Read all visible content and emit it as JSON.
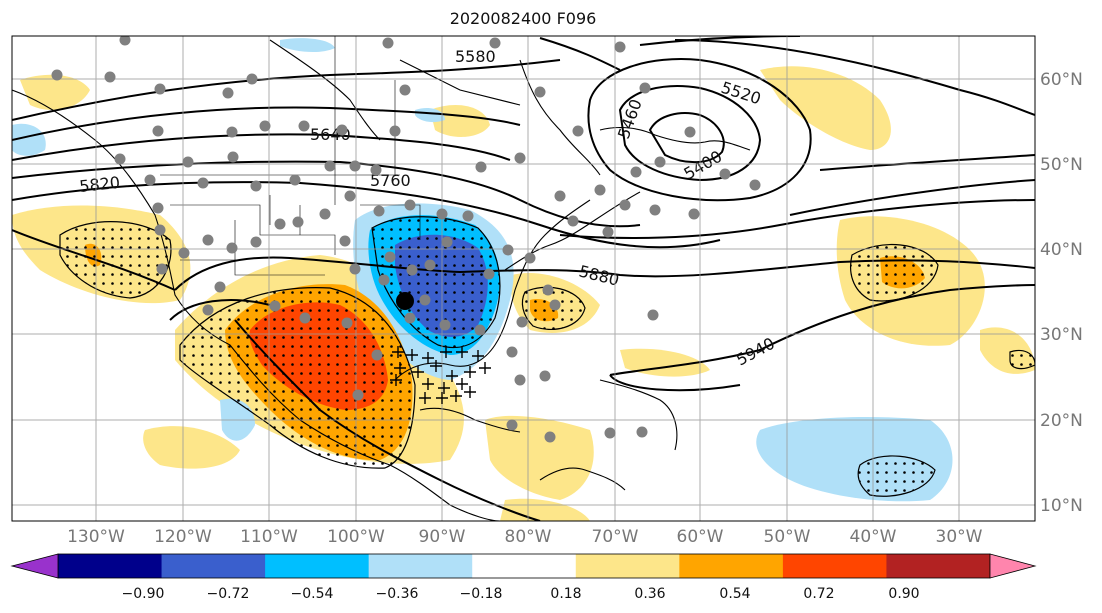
{
  "title": "2020082400 F096",
  "map": {
    "lon_ticks": [
      "130°W",
      "120°W",
      "110°W",
      "100°W",
      "90°W",
      "80°W",
      "70°W",
      "60°W",
      "50°W",
      "40°W",
      "30°W"
    ],
    "lat_ticks": [
      "60°N",
      "50°N",
      "40°N",
      "30°N",
      "20°N",
      "10°N"
    ],
    "contour_labels": [
      "5580",
      "5520",
      "5460",
      "5400",
      "5640",
      "5760",
      "5820",
      "5880",
      "5940"
    ],
    "anomaly_colors": {
      "neg_090": "#9932cc",
      "neg_072": "#00008b",
      "neg_054": "#3a5fcd",
      "neg_036": "#00bfff",
      "neg_018": "#b0e0f8",
      "zero": "#ffffff",
      "pos_018": "#fde68a",
      "pos_036": "#ffa500",
      "pos_054": "#ff4500",
      "pos_072": "#ff2400",
      "pos_090": "#b22222",
      "pos_max": "#ff85ad"
    },
    "station_marker_color": "#808080",
    "storm_marker_color": "#000000"
  },
  "colorbar": {
    "ticks": [
      "−0.90",
      "−0.72",
      "−0.54",
      "−0.36",
      "−0.18",
      "0.18",
      "0.36",
      "0.54",
      "0.72",
      "0.90"
    ],
    "colors": [
      "#9932cc",
      "#00008b",
      "#3a5fcd",
      "#00bfff",
      "#b0e0f8",
      "#ffffff",
      "#fde68a",
      "#ffa500",
      "#ff4500",
      "#b22222",
      "#ff85ad"
    ]
  }
}
